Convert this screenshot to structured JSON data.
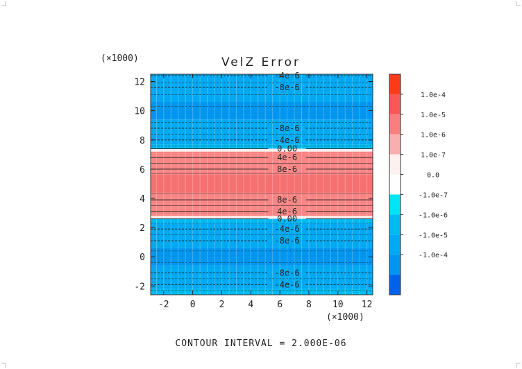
{
  "chart_data": {
    "type": "contour",
    "title": "VelZ Error",
    "x_scale_label": "(×1000)",
    "y_scale_label": "(×1000)",
    "xlim": [
      -2.9,
      12.4
    ],
    "ylim": [
      -2.6,
      12.5
    ],
    "x_ticks": [
      "-2",
      "0",
      "2",
      "4",
      "6",
      "8",
      "10",
      "12"
    ],
    "y_ticks": [
      "-2",
      "0",
      "2",
      "4",
      "6",
      "8",
      "10",
      "12"
    ],
    "x_tick_values": [
      -2,
      0,
      2,
      4,
      6,
      8,
      10,
      12
    ],
    "y_tick_values": [
      -2,
      0,
      2,
      4,
      6,
      8,
      10,
      12
    ],
    "bands": [
      {
        "y0": -2.6,
        "y1": -2.2,
        "level": 4,
        "color": "#00bbf2"
      },
      {
        "y0": -2.2,
        "y1": -0.6,
        "level": 5,
        "color": "#00a9f2"
      },
      {
        "y0": -0.6,
        "y1": 0.6,
        "level": 6,
        "color": "#0095ef"
      },
      {
        "y0": 0.6,
        "y1": 2.3,
        "level": 5,
        "color": "#00a9f2"
      },
      {
        "y0": 2.3,
        "y1": 2.6,
        "level": 4,
        "color": "#00bbf2"
      },
      {
        "y0": 2.6,
        "y1": 2.8,
        "level": 2,
        "color": "#fdf0f0"
      },
      {
        "y0": 2.8,
        "y1": 7.2,
        "level": 1,
        "color": "#f98585"
      },
      {
        "y0": 4.4,
        "y1": 5.6,
        "level": 0,
        "color": "#f57070"
      },
      {
        "y0": 7.2,
        "y1": 7.4,
        "level": 2,
        "color": "#fdf0f0"
      },
      {
        "y0": 7.4,
        "y1": 7.7,
        "level": 4,
        "color": "#00bbf2"
      },
      {
        "y0": 7.7,
        "y1": 9.4,
        "level": 5,
        "color": "#00a9f2"
      },
      {
        "y0": 9.4,
        "y1": 10.6,
        "level": 6,
        "color": "#0095ef"
      },
      {
        "y0": 10.6,
        "y1": 12.5,
        "level": 5,
        "color": "#00a9f2"
      }
    ],
    "contour_labels": [
      {
        "y": 12.4,
        "text": "-4e-6"
      },
      {
        "y": 11.6,
        "text": "-8e-6"
      },
      {
        "y": 8.8,
        "text": "-8e-6"
      },
      {
        "y": 8.0,
        "text": "-4e-6"
      },
      {
        "y": 7.4,
        "text": "0.00"
      },
      {
        "y": 6.8,
        "text": "4e-6"
      },
      {
        "y": 6.0,
        "text": "8e-6"
      },
      {
        "y": 3.9,
        "text": "8e-6"
      },
      {
        "y": 3.1,
        "text": "4e-6"
      },
      {
        "y": 2.6,
        "text": "0.00"
      },
      {
        "y": 1.9,
        "text": "-4e-6"
      },
      {
        "y": 1.1,
        "text": "-8e-6"
      },
      {
        "y": -1.1,
        "text": "-8e-6"
      },
      {
        "y": -1.9,
        "text": "-4e-6"
      }
    ],
    "colorbar": {
      "colors": [
        "#fb3b17",
        "#f85858",
        "#f97f7f",
        "#fbaeae",
        "#fdf0f0",
        "#fefefe",
        "#00e5f5",
        "#00bbf2",
        "#00a9f2",
        "#0095ef",
        "#0062ea"
      ],
      "labels": [
        "1.0e-4",
        "1.0e-5",
        "1.0e-6",
        "1.0e-7",
        "0.0",
        "-1.0e-7",
        "-1.0e-6",
        "-1.0e-5",
        "-1.0e-4"
      ]
    },
    "footer": "CONTOUR INTERVAL = 2.000E-06"
  }
}
